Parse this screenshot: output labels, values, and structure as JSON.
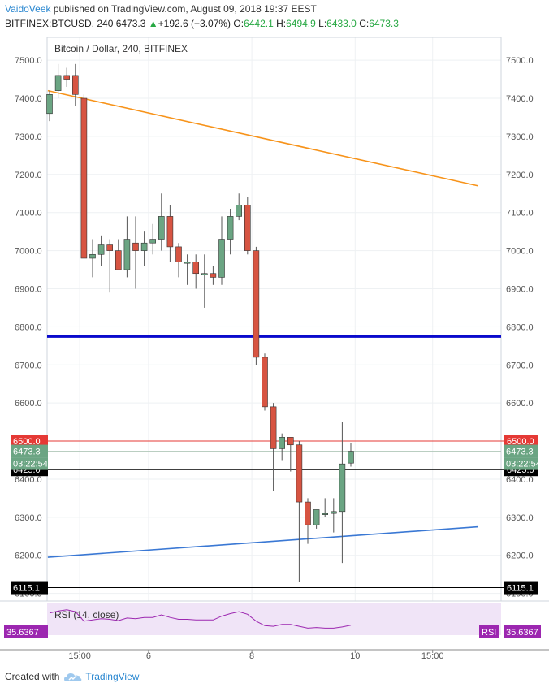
{
  "header": {
    "author": "VaidoVeek",
    "published": " published on TradingView.com, August 09, 2018 19:37 EEST",
    "symbol_tf": "BITFINEX:BTCUSD, 240 ",
    "last": "6473.3",
    "arrow": "▲",
    "change": "+192.6 (+3.07%)",
    "o_label": " O:",
    "o_val": "6442.1",
    "h_label": " H:",
    "h_val": "6494.9",
    "l_label": " L:",
    "l_val": "6433.0",
    "c_label": " C:",
    "c_val": "6473.3"
  },
  "footer": {
    "created": "Created with",
    "brand": "TradingView"
  },
  "colors": {
    "up": "#6ba583",
    "down": "#d75442",
    "trend_orange": "#f7931a",
    "trend_blue": "#3a78d4",
    "support": "#0a0acc",
    "rsi": "#9c27b0"
  },
  "chart_data": {
    "type": "candlestick",
    "title": "Bitcoin / Dollar, 240, BITFINEX",
    "ylim": [
      6080,
      7560
    ],
    "yticks": [
      6100,
      6200,
      6300,
      6400,
      6500,
      6600,
      6700,
      6800,
      6900,
      7000,
      7100,
      7200,
      7300,
      7400,
      7500
    ],
    "ytick_labels": [
      "6100.0",
      "6200.0",
      "6300.0",
      "6400.0",
      "6500.0",
      "6600.0",
      "6700.0",
      "6800.0",
      "6900.0",
      "7000.0",
      "7100.0",
      "7200.0",
      "7300.0",
      "7400.0",
      "7500.0"
    ],
    "xticks": [
      {
        "label": "15:00",
        "i": 3.5
      },
      {
        "label": "6",
        "i": 11.5
      },
      {
        "label": "8",
        "i": 23.5
      },
      {
        "label": "10",
        "i": 35.5
      },
      {
        "label": "15:00",
        "i": 44.5
      }
    ],
    "candles": [
      {
        "o": 7360,
        "h": 7420,
        "l": 7340,
        "c": 7410
      },
      {
        "o": 7420,
        "h": 7490,
        "l": 7400,
        "c": 7460
      },
      {
        "o": 7460,
        "h": 7480,
        "l": 7430,
        "c": 7450
      },
      {
        "o": 7460,
        "h": 7490,
        "l": 7380,
        "c": 7410
      },
      {
        "o": 7400,
        "h": 7410,
        "l": 6980,
        "c": 6980
      },
      {
        "o": 6980,
        "h": 7030,
        "l": 6930,
        "c": 6990
      },
      {
        "o": 6990,
        "h": 7040,
        "l": 6960,
        "c": 7015
      },
      {
        "o": 7015,
        "h": 7030,
        "l": 6890,
        "c": 7000
      },
      {
        "o": 7000,
        "h": 7030,
        "l": 6950,
        "c": 6950
      },
      {
        "o": 6950,
        "h": 7090,
        "l": 6930,
        "c": 7030
      },
      {
        "o": 7020,
        "h": 7090,
        "l": 6900,
        "c": 7000
      },
      {
        "o": 7000,
        "h": 7050,
        "l": 6960,
        "c": 7020
      },
      {
        "o": 7020,
        "h": 7070,
        "l": 6990,
        "c": 7030
      },
      {
        "o": 7030,
        "h": 7150,
        "l": 7000,
        "c": 7090
      },
      {
        "o": 7090,
        "h": 7120,
        "l": 6970,
        "c": 7010
      },
      {
        "o": 7010,
        "h": 7020,
        "l": 6930,
        "c": 6970
      },
      {
        "o": 6970,
        "h": 6990,
        "l": 6910,
        "c": 6970
      },
      {
        "o": 6970,
        "h": 6990,
        "l": 6900,
        "c": 6940
      },
      {
        "o": 6940,
        "h": 6990,
        "l": 6850,
        "c": 6940
      },
      {
        "o": 6940,
        "h": 6960,
        "l": 6910,
        "c": 6930
      },
      {
        "o": 6930,
        "h": 7090,
        "l": 6910,
        "c": 7030
      },
      {
        "o": 7030,
        "h": 7110,
        "l": 6990,
        "c": 7090
      },
      {
        "o": 7090,
        "h": 7150,
        "l": 7080,
        "c": 7120
      },
      {
        "o": 7120,
        "h": 7140,
        "l": 6990,
        "c": 7000
      },
      {
        "o": 7000,
        "h": 7010,
        "l": 6700,
        "c": 6720
      },
      {
        "o": 6720,
        "h": 6730,
        "l": 6580,
        "c": 6590
      },
      {
        "o": 6590,
        "h": 6600,
        "l": 6370,
        "c": 6480
      },
      {
        "o": 6480,
        "h": 6520,
        "l": 6450,
        "c": 6510
      },
      {
        "o": 6510,
        "h": 6510,
        "l": 6420,
        "c": 6490
      },
      {
        "o": 6490,
        "h": 6500,
        "l": 6130,
        "c": 6340
      },
      {
        "o": 6340,
        "h": 6350,
        "l": 6230,
        "c": 6280
      },
      {
        "o": 6280,
        "h": 6320,
        "l": 6270,
        "c": 6320
      },
      {
        "o": 6310,
        "h": 6350,
        "l": 6300,
        "c": 6310
      },
      {
        "o": 6310,
        "h": 6350,
        "l": 6260,
        "c": 6315
      },
      {
        "o": 6315,
        "h": 6550,
        "l": 6180,
        "c": 6440
      },
      {
        "o": 6442.1,
        "h": 6494.9,
        "l": 6433.0,
        "c": 6473.3
      }
    ],
    "trendlines": [
      {
        "name": "Orange resistance",
        "from": {
          "i": -0.2,
          "y": 7420
        },
        "to": {
          "i": 49.8,
          "y": 7170
        },
        "color": "#f7931a"
      },
      {
        "name": "Blue support",
        "from": {
          "i": -0.2,
          "y": 6195
        },
        "to": {
          "i": 49.8,
          "y": 6275
        },
        "color": "#3a78d4"
      }
    ],
    "horizontal_levels": [
      {
        "value": 6775,
        "color": "#0a0acc",
        "label": ""
      },
      {
        "value": 6500,
        "color": "#e53935",
        "label": "6500.0"
      },
      {
        "value": 6425,
        "color": "#000000",
        "label": "6425.0"
      },
      {
        "value": 6115.1,
        "color": "#000000",
        "label": "6115.1"
      }
    ],
    "price_labels": {
      "last": "6473.3",
      "countdown": "03:22:54"
    },
    "rsi": {
      "label": "RSI (14, close)",
      "value": "35.6367",
      "values": [
        55,
        58,
        60,
        57,
        42,
        44,
        46,
        45,
        43,
        47,
        46,
        48,
        48,
        52,
        48,
        45,
        45,
        44,
        44,
        44,
        50,
        54,
        57,
        53,
        42,
        35,
        34,
        37,
        37,
        34,
        31,
        32,
        31,
        31,
        33,
        35.6
      ]
    }
  }
}
